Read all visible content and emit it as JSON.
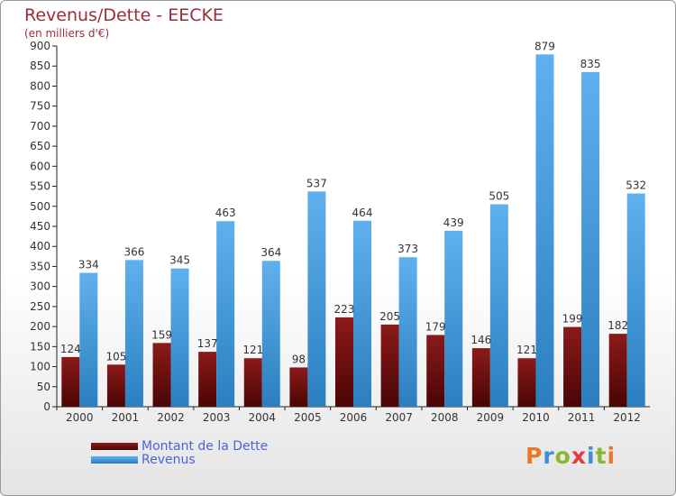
{
  "colors": {
    "dette_top": "#8c1a1a",
    "dette_bottom": "#4a0505",
    "revenus_top": "#5fb0ee",
    "revenus_bottom": "#2b7fc0",
    "axis": "#222222",
    "title": "#9c2b3b",
    "legend_text": "#4a63d9"
  },
  "logo": {
    "text": "Proxiti",
    "letter_colors": [
      "#e8792a",
      "#3a8fd8",
      "#86b832",
      "#e23c3c",
      "#3a8fd8",
      "#86b832",
      "#e8792a"
    ]
  },
  "chart_data": {
    "type": "bar",
    "title": "Revenus/Dette - EECKE",
    "subtitle": "(en milliers d'€)",
    "xlabel": "",
    "ylabel": "",
    "categories": [
      "2000",
      "2001",
      "2002",
      "2003",
      "2004",
      "2005",
      "2006",
      "2007",
      "2008",
      "2009",
      "2010",
      "2011",
      "2012"
    ],
    "series": [
      {
        "name": "Montant de la Dette",
        "values": [
          124,
          105,
          159,
          137,
          121,
          98,
          223,
          205,
          179,
          146,
          121,
          199,
          182
        ]
      },
      {
        "name": "Revenus",
        "values": [
          334,
          366,
          345,
          463,
          364,
          537,
          464,
          373,
          439,
          505,
          879,
          835,
          532
        ]
      }
    ],
    "ylim": [
      0,
      900
    ],
    "ytick_step": 50,
    "grid": false,
    "legend": "bottom-left"
  }
}
